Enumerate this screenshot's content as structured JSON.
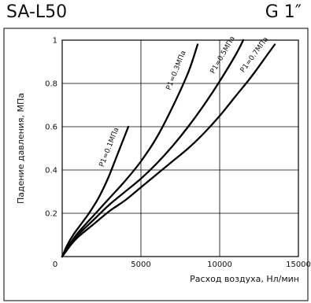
{
  "header": {
    "model": "SA-L50",
    "port": "G 1″"
  },
  "chart_data": {
    "type": "line",
    "xlabel": "Расход воздуха, Нл/мин",
    "ylabel": "Падение давления, МПа",
    "xlim": [
      0,
      15000
    ],
    "ylim": [
      0,
      1
    ],
    "x_ticks": [
      0,
      5000,
      10000,
      15000
    ],
    "x_tick_labels": [
      "0",
      "5000",
      "10000",
      "15000"
    ],
    "y_ticks": [
      0.2,
      0.4,
      0.6,
      0.8,
      1
    ],
    "y_tick_labels": [
      "0.2",
      "0.4",
      "0.6",
      "0.8",
      "1"
    ],
    "origin_label": "0",
    "grid": true,
    "series": [
      {
        "name": "P1=0.1МПа",
        "points": [
          [
            0,
            0
          ],
          [
            300,
            0.05
          ],
          [
            700,
            0.1
          ],
          [
            1200,
            0.15
          ],
          [
            1700,
            0.2
          ],
          [
            2300,
            0.27
          ],
          [
            2900,
            0.36
          ],
          [
            3500,
            0.47
          ],
          [
            4200,
            0.6
          ]
        ]
      },
      {
        "name": "P1=0.3МПа",
        "points": [
          [
            0,
            0
          ],
          [
            500,
            0.06
          ],
          [
            1000,
            0.11
          ],
          [
            2000,
            0.19
          ],
          [
            3000,
            0.27
          ],
          [
            4000,
            0.35
          ],
          [
            5000,
            0.44
          ],
          [
            6000,
            0.55
          ],
          [
            7000,
            0.69
          ],
          [
            8000,
            0.85
          ],
          [
            8600,
            0.98
          ]
        ]
      },
      {
        "name": "P1=0.5МПа",
        "points": [
          [
            0,
            0
          ],
          [
            500,
            0.05
          ],
          [
            1000,
            0.1
          ],
          [
            2000,
            0.17
          ],
          [
            3000,
            0.24
          ],
          [
            4000,
            0.3
          ],
          [
            5000,
            0.36
          ],
          [
            6000,
            0.43
          ],
          [
            7000,
            0.51
          ],
          [
            8000,
            0.6
          ],
          [
            9000,
            0.7
          ],
          [
            10000,
            0.81
          ],
          [
            11000,
            0.93
          ],
          [
            11500,
            1.0
          ]
        ]
      },
      {
        "name": "P1=0.7МПа",
        "points": [
          [
            0,
            0
          ],
          [
            500,
            0.05
          ],
          [
            1000,
            0.09
          ],
          [
            2000,
            0.15
          ],
          [
            3000,
            0.21
          ],
          [
            4000,
            0.26
          ],
          [
            5000,
            0.32
          ],
          [
            6000,
            0.38
          ],
          [
            7000,
            0.44
          ],
          [
            8000,
            0.5
          ],
          [
            9000,
            0.57
          ],
          [
            10000,
            0.65
          ],
          [
            11000,
            0.74
          ],
          [
            12000,
            0.83
          ],
          [
            13000,
            0.93
          ],
          [
            13500,
            0.98
          ]
        ]
      }
    ]
  }
}
